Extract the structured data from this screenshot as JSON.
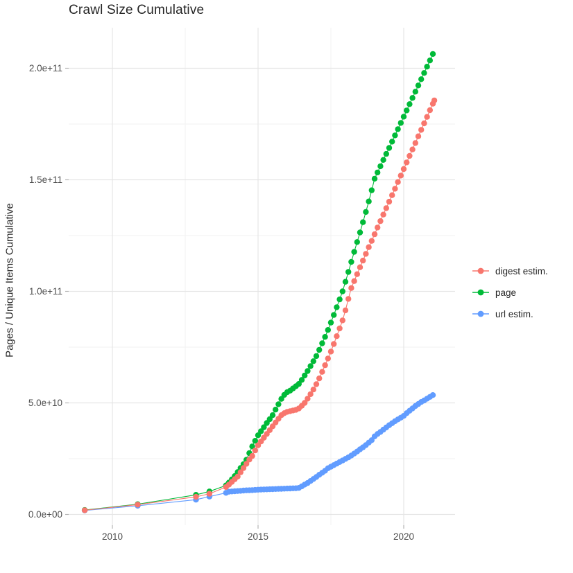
{
  "title": "Crawl Size Cumulative",
  "axes": {
    "y_title": "Pages / Unique Items Cumulative",
    "x_tick_values": [
      2010,
      2015,
      2020
    ],
    "x_tick_labels": [
      "2010",
      "2015",
      "2020"
    ],
    "x_minor_values": [
      2012.5,
      2017.5
    ],
    "y_tick_values": [
      0,
      50,
      100,
      150,
      200
    ],
    "y_tick_labels": [
      "0.0e+00",
      "5.0e+10",
      "1.0e+11",
      "1.5e+11",
      "2.0e+11"
    ],
    "y_minor_values": [
      25,
      75,
      125,
      175
    ]
  },
  "legend": {
    "items": [
      {
        "label": "digest estim.",
        "color": "#F8766D"
      },
      {
        "label": "page",
        "color": "#00BA38"
      },
      {
        "label": "url estim.",
        "color": "#619CFF"
      }
    ]
  },
  "colors": {
    "grid_major": "#E5E5E5",
    "grid_minor": "#F2F2F2",
    "tick": "#B3B3B3",
    "tick_label": "#4D4D4D"
  },
  "chart_data": {
    "type": "line",
    "title": "Crawl Size Cumulative",
    "xlabel": "",
    "ylabel": "Pages / Unique Items Cumulative",
    "x_unit": "year",
    "y_unit": "items, in units of 1e9 (axis shown as 0.0e+00 .. 2.0e+11)",
    "xlim": [
      2008.5,
      2021.8
    ],
    "ylim_e9": [
      -8,
      218
    ],
    "grid": true,
    "legend_position": "right",
    "series": [
      {
        "name": "url estim.",
        "color": "#619CFF",
        "points": [
          [
            2009.05,
            1.8
          ],
          [
            2010.87,
            3.9
          ],
          [
            2012.87,
            6.6
          ],
          [
            2013.33,
            8
          ],
          [
            2013.9,
            9.7
          ],
          [
            2014.0,
            10.2
          ],
          [
            2014.1,
            10.3
          ],
          [
            2014.2,
            10.4
          ],
          [
            2014.3,
            10.5
          ],
          [
            2014.4,
            10.6
          ],
          [
            2014.5,
            10.7
          ],
          [
            2014.6,
            10.8
          ],
          [
            2014.7,
            10.85
          ],
          [
            2014.8,
            10.9
          ],
          [
            2014.9,
            11
          ],
          [
            2015.0,
            11.1
          ],
          [
            2015.1,
            11.15
          ],
          [
            2015.2,
            11.2
          ],
          [
            2015.3,
            11.25
          ],
          [
            2015.4,
            11.3
          ],
          [
            2015.5,
            11.35
          ],
          [
            2015.6,
            11.4
          ],
          [
            2015.7,
            11.45
          ],
          [
            2015.8,
            11.5
          ],
          [
            2015.9,
            11.55
          ],
          [
            2016.0,
            11.6
          ],
          [
            2016.1,
            11.65
          ],
          [
            2016.2,
            11.7
          ],
          [
            2016.3,
            11.75
          ],
          [
            2016.4,
            11.9
          ],
          [
            2016.5,
            12.6
          ],
          [
            2016.6,
            13.4
          ],
          [
            2016.7,
            14.1
          ],
          [
            2016.8,
            15
          ],
          [
            2016.9,
            15.9
          ],
          [
            2017.0,
            16.8
          ],
          [
            2017.1,
            17.8
          ],
          [
            2017.2,
            18.7
          ],
          [
            2017.3,
            19.6
          ],
          [
            2017.4,
            20.7
          ],
          [
            2017.5,
            21.4
          ],
          [
            2017.6,
            22.1
          ],
          [
            2017.7,
            22.8
          ],
          [
            2017.8,
            23.5
          ],
          [
            2017.9,
            24.2
          ],
          [
            2018.0,
            24.9
          ],
          [
            2018.1,
            25.6
          ],
          [
            2018.2,
            26.4
          ],
          [
            2018.3,
            27.3
          ],
          [
            2018.4,
            28.2
          ],
          [
            2018.5,
            29.2
          ],
          [
            2018.6,
            30.1
          ],
          [
            2018.7,
            31.1
          ],
          [
            2018.8,
            32.2
          ],
          [
            2018.9,
            33.3
          ],
          [
            2019.0,
            35
          ],
          [
            2019.1,
            36.1
          ],
          [
            2019.2,
            37
          ],
          [
            2019.3,
            38
          ],
          [
            2019.4,
            39
          ],
          [
            2019.5,
            40
          ],
          [
            2019.6,
            40.9
          ],
          [
            2019.7,
            41.8
          ],
          [
            2019.8,
            42.6
          ],
          [
            2019.9,
            43.4
          ],
          [
            2020.0,
            44.2
          ],
          [
            2020.1,
            45.4
          ],
          [
            2020.2,
            46.5
          ],
          [
            2020.3,
            47.5
          ],
          [
            2020.4,
            48.6
          ],
          [
            2020.5,
            49.5
          ],
          [
            2020.6,
            50.4
          ],
          [
            2020.7,
            51.1
          ],
          [
            2020.8,
            51.9
          ],
          [
            2020.9,
            52.7
          ],
          [
            2021.0,
            53.5
          ]
        ]
      },
      {
        "name": "page",
        "color": "#00BA38",
        "points": [
          [
            2009.05,
            2
          ],
          [
            2010.87,
            4.6
          ],
          [
            2012.87,
            8.8
          ],
          [
            2013.33,
            10.3
          ],
          [
            2013.9,
            13
          ],
          [
            2014.0,
            14.3
          ],
          [
            2014.1,
            15.7
          ],
          [
            2014.2,
            17.2
          ],
          [
            2014.3,
            19
          ],
          [
            2014.4,
            20.8
          ],
          [
            2014.5,
            22.5
          ],
          [
            2014.6,
            24.5
          ],
          [
            2014.7,
            27.5
          ],
          [
            2014.8,
            30.5
          ],
          [
            2014.9,
            33
          ],
          [
            2015.0,
            35.5
          ],
          [
            2015.1,
            37.3
          ],
          [
            2015.2,
            39.1
          ],
          [
            2015.3,
            41
          ],
          [
            2015.4,
            42.7
          ],
          [
            2015.5,
            44.5
          ],
          [
            2015.6,
            47
          ],
          [
            2015.7,
            49.4
          ],
          [
            2015.8,
            51.8
          ],
          [
            2015.9,
            53.6
          ],
          [
            2016.0,
            54.8
          ],
          [
            2016.1,
            55.5
          ],
          [
            2016.2,
            56.5
          ],
          [
            2016.3,
            57.5
          ],
          [
            2016.4,
            58.5
          ],
          [
            2016.5,
            60.3
          ],
          [
            2016.6,
            62.3
          ],
          [
            2016.7,
            64.3
          ],
          [
            2016.8,
            66.5
          ],
          [
            2016.9,
            68.7
          ],
          [
            2017.0,
            71
          ],
          [
            2017.1,
            73.8
          ],
          [
            2017.2,
            76.7
          ],
          [
            2017.3,
            79.6
          ],
          [
            2017.4,
            82.7
          ],
          [
            2017.5,
            86
          ],
          [
            2017.6,
            89.4
          ],
          [
            2017.7,
            92.9
          ],
          [
            2017.8,
            96.4
          ],
          [
            2017.9,
            100
          ],
          [
            2018.0,
            104.3
          ],
          [
            2018.1,
            108.7
          ],
          [
            2018.2,
            113.2
          ],
          [
            2018.3,
            117.7
          ],
          [
            2018.4,
            122.1
          ],
          [
            2018.5,
            126.4
          ],
          [
            2018.6,
            131
          ],
          [
            2018.7,
            135.6
          ],
          [
            2018.8,
            140.3
          ],
          [
            2018.9,
            145.3
          ],
          [
            2019.0,
            150.5
          ],
          [
            2019.1,
            153.3
          ],
          [
            2019.2,
            156.1
          ],
          [
            2019.3,
            158.9
          ],
          [
            2019.4,
            161.6
          ],
          [
            2019.5,
            164.3
          ],
          [
            2019.6,
            167.1
          ],
          [
            2019.7,
            169.9
          ],
          [
            2019.8,
            172.7
          ],
          [
            2019.9,
            175.5
          ],
          [
            2020.0,
            178.3
          ],
          [
            2020.1,
            181.1
          ],
          [
            2020.2,
            183.9
          ],
          [
            2020.3,
            186.7
          ],
          [
            2020.4,
            189.5
          ],
          [
            2020.5,
            192.3
          ],
          [
            2020.6,
            195.1
          ],
          [
            2020.7,
            197.9
          ],
          [
            2020.8,
            200.7
          ],
          [
            2020.9,
            203.5
          ],
          [
            2021.0,
            206.4
          ]
        ]
      },
      {
        "name": "digest estim.",
        "color": "#F8766D",
        "points": [
          [
            2009.05,
            1.9
          ],
          [
            2010.87,
            4.4
          ],
          [
            2012.87,
            7.9
          ],
          [
            2013.33,
            9.3
          ],
          [
            2013.9,
            12.3
          ],
          [
            2014.0,
            13.4
          ],
          [
            2014.1,
            14.6
          ],
          [
            2014.2,
            15.8
          ],
          [
            2014.3,
            17
          ],
          [
            2014.4,
            18.9
          ],
          [
            2014.5,
            20.8
          ],
          [
            2014.6,
            22.7
          ],
          [
            2014.7,
            24.6
          ],
          [
            2014.8,
            26.2
          ],
          [
            2014.9,
            28.7
          ],
          [
            2015.0,
            31
          ],
          [
            2015.1,
            32.7
          ],
          [
            2015.2,
            34.4
          ],
          [
            2015.3,
            36.1
          ],
          [
            2015.4,
            37.8
          ],
          [
            2015.5,
            39.5
          ],
          [
            2015.6,
            41.2
          ],
          [
            2015.7,
            42.9
          ],
          [
            2015.8,
            44.5
          ],
          [
            2015.9,
            45.4
          ],
          [
            2016.0,
            46
          ],
          [
            2016.1,
            46.3
          ],
          [
            2016.2,
            46.6
          ],
          [
            2016.3,
            46.9
          ],
          [
            2016.4,
            47.5
          ],
          [
            2016.5,
            48.7
          ],
          [
            2016.6,
            50
          ],
          [
            2016.7,
            51.9
          ],
          [
            2016.8,
            53.9
          ],
          [
            2016.9,
            56
          ],
          [
            2017.0,
            58.4
          ],
          [
            2017.1,
            61
          ],
          [
            2017.2,
            63.9
          ],
          [
            2017.3,
            66.9
          ],
          [
            2017.4,
            69.9
          ],
          [
            2017.5,
            73
          ],
          [
            2017.6,
            76.4
          ],
          [
            2017.7,
            79.9
          ],
          [
            2017.8,
            83.4
          ],
          [
            2017.9,
            87
          ],
          [
            2018.0,
            91.5
          ],
          [
            2018.1,
            96.6
          ],
          [
            2018.2,
            101.5
          ],
          [
            2018.3,
            104.6
          ],
          [
            2018.4,
            107.7
          ],
          [
            2018.5,
            110.8
          ],
          [
            2018.6,
            113.8
          ],
          [
            2018.7,
            116.8
          ],
          [
            2018.8,
            119.8
          ],
          [
            2018.9,
            122.6
          ],
          [
            2019.0,
            125.6
          ],
          [
            2019.1,
            128.6
          ],
          [
            2019.2,
            131.5
          ],
          [
            2019.3,
            134.4
          ],
          [
            2019.4,
            137.3
          ],
          [
            2019.5,
            140.2
          ],
          [
            2019.6,
            143.1
          ],
          [
            2019.7,
            146
          ],
          [
            2019.8,
            149
          ],
          [
            2019.9,
            151.9
          ],
          [
            2020.0,
            154.8
          ],
          [
            2020.1,
            157.8
          ],
          [
            2020.2,
            160.7
          ],
          [
            2020.3,
            163.6
          ],
          [
            2020.4,
            166.5
          ],
          [
            2020.5,
            169.5
          ],
          [
            2020.6,
            172.4
          ],
          [
            2020.7,
            175.3
          ],
          [
            2020.8,
            178.2
          ],
          [
            2020.9,
            181.2
          ],
          [
            2021.0,
            184.1
          ],
          [
            2021.05,
            185.6
          ]
        ]
      }
    ]
  }
}
